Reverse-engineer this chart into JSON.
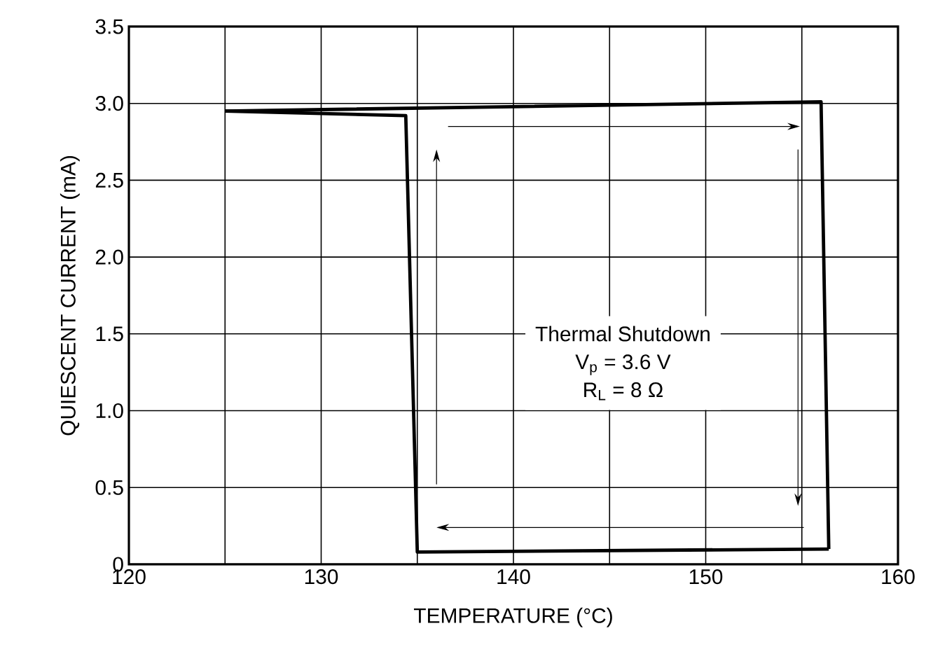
{
  "chart_data": {
    "type": "line",
    "xlabel": "TEMPERATURE (°C)",
    "ylabel": "QUIESCENT CURRENT (mA)",
    "series": [
      {
        "color": "#000000",
        "x": [
          125,
          156,
          156.4
        ],
        "values": [
          2.95,
          3.01,
          0.1
        ]
      },
      {
        "color": "#000000",
        "x": [
          125,
          134.4,
          135,
          156.4
        ],
        "values": [
          2.95,
          2.92,
          0.08,
          0.1
        ]
      }
    ],
    "xlim": [
      120,
      160
    ],
    "ylim": [
      0,
      3.5
    ],
    "xticks": [
      120,
      {
        "value": 125,
        "label": null
      },
      130,
      {
        "value": 135,
        "label": null
      },
      140,
      {
        "value": 145,
        "label": null
      },
      150,
      {
        "value": 155,
        "label": null
      },
      160
    ],
    "yticks": [
      0,
      0.5,
      {
        "value": 1,
        "label": "1.0"
      },
      1.5,
      {
        "value": 2,
        "label": "2.0"
      },
      2.5,
      {
        "value": 3,
        "label": "3.0"
      },
      3.5
    ],
    "grid": true,
    "line_style": "solid",
    "marker": "none",
    "annotations": [
      "Thermal Shutdown",
      "V$_{p}$ = 3.6 V",
      "R$_{L}$ = 8 Ω"
    ]
  }
}
